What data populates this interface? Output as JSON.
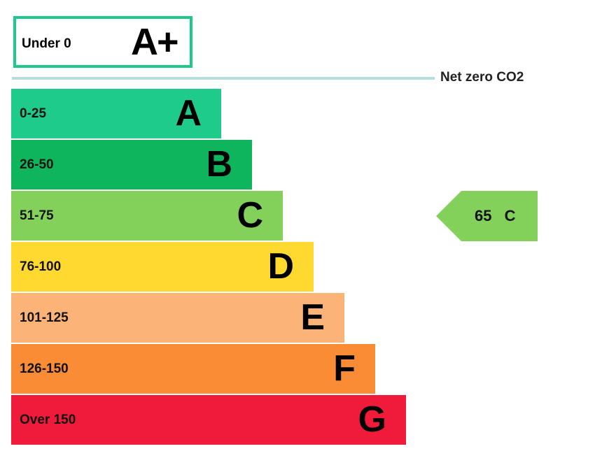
{
  "top_band": {
    "range": "Under 0",
    "letter": "A+",
    "color": "#1fc98a"
  },
  "net_zero_label": "Net zero CO2",
  "chart_data": {
    "type": "bar",
    "title": "",
    "categories": [
      "A",
      "B",
      "C",
      "D",
      "E",
      "F",
      "G"
    ],
    "ranges": [
      "0-25",
      "26-50",
      "51-75",
      "76-100",
      "101-125",
      "126-150",
      "Over 150"
    ],
    "colors": [
      "#1ecb8b",
      "#0fb55d",
      "#83d05a",
      "#ffd92f",
      "#fcb377",
      "#fa8c35",
      "#f01a3a"
    ],
    "current_rating": {
      "value": "65",
      "band": "C",
      "color": "#83d05a"
    }
  }
}
